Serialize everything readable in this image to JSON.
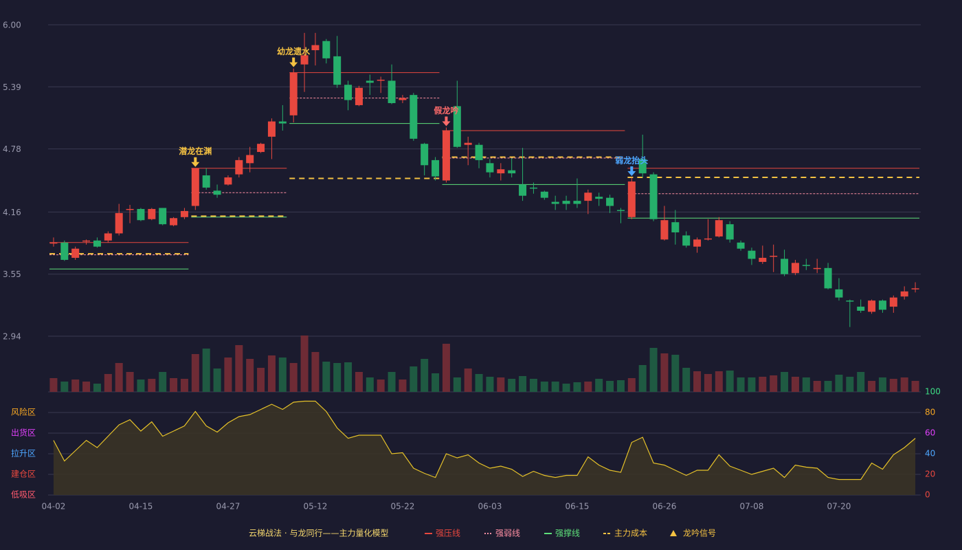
{
  "chart_data": [
    {
      "type": "candlestick",
      "categories": [
        "04-02",
        null,
        null,
        null,
        null,
        null,
        null,
        null,
        "04-15",
        null,
        null,
        null,
        null,
        null,
        null,
        null,
        "04-27",
        null,
        null,
        null,
        null,
        null,
        null,
        null,
        "05-12",
        null,
        null,
        null,
        null,
        null,
        null,
        null,
        "05-22",
        null,
        null,
        null,
        null,
        null,
        null,
        null,
        "06-03",
        null,
        null,
        null,
        null,
        null,
        null,
        null,
        "06-15",
        null,
        null,
        null,
        null,
        null,
        null,
        null,
        "06-26",
        null,
        null,
        null,
        null,
        null,
        null,
        null,
        "07-08",
        null,
        null,
        null,
        null,
        null,
        null,
        null,
        "07-20",
        null,
        null,
        null,
        null,
        null,
        null,
        null
      ],
      "open": [
        3.86,
        3.86,
        3.71,
        3.87,
        3.88,
        3.88,
        3.95,
        4.18,
        4.19,
        4.09,
        4.2,
        4.03,
        4.11,
        4.22,
        4.52,
        4.37,
        4.43,
        4.53,
        4.64,
        4.75,
        4.9,
        5.05,
        5.11,
        5.61,
        5.75,
        5.84,
        5.69,
        5.41,
        5.21,
        5.45,
        5.45,
        5.45,
        5.26,
        5.31,
        4.83,
        4.67,
        4.47,
        5.2,
        4.82,
        4.82,
        4.64,
        4.54,
        4.57,
        4.43,
        4.4,
        4.36,
        4.26,
        4.27,
        4.27,
        4.27,
        4.31,
        4.3,
        4.18,
        4.11,
        4.68,
        4.53,
        3.89,
        4.06,
        3.93,
        3.82,
        3.89,
        3.92,
        4.04,
        3.86,
        3.78,
        3.67,
        3.72,
        3.7,
        3.56,
        3.64,
        3.6,
        3.61,
        3.4,
        3.29,
        3.23,
        3.18,
        3.29,
        3.23,
        3.33,
        3.4
      ],
      "high": [
        3.91,
        3.88,
        3.82,
        3.89,
        3.91,
        3.97,
        4.24,
        4.23,
        4.2,
        4.2,
        4.2,
        4.11,
        4.2,
        4.59,
        4.59,
        4.43,
        4.52,
        4.7,
        4.8,
        4.84,
        5.08,
        5.21,
        5.57,
        5.92,
        5.92,
        5.86,
        5.89,
        5.45,
        5.4,
        5.51,
        5.49,
        5.61,
        5.31,
        5.33,
        4.84,
        4.7,
        4.99,
        5.45,
        4.9,
        4.84,
        4.68,
        4.64,
        4.69,
        4.79,
        4.45,
        4.37,
        4.32,
        4.32,
        4.49,
        4.38,
        4.35,
        4.33,
        4.2,
        4.5,
        4.92,
        4.55,
        4.22,
        4.18,
        3.97,
        3.91,
        4.09,
        4.11,
        4.07,
        3.88,
        3.81,
        3.83,
        3.84,
        3.79,
        3.69,
        3.7,
        3.7,
        3.66,
        3.51,
        3.3,
        3.3,
        3.3,
        3.3,
        3.34,
        3.43,
        3.47
      ],
      "low": [
        3.82,
        3.68,
        3.69,
        3.84,
        3.81,
        3.86,
        3.93,
        4.05,
        4.07,
        4.08,
        4.03,
        4.02,
        4.09,
        4.18,
        4.38,
        4.3,
        4.42,
        4.5,
        4.55,
        4.74,
        4.68,
        4.96,
        5.04,
        5.34,
        5.6,
        5.62,
        5.38,
        5.16,
        5.2,
        5.31,
        5.33,
        5.22,
        5.23,
        4.86,
        4.52,
        4.47,
        4.45,
        4.79,
        4.62,
        4.59,
        4.5,
        4.47,
        4.5,
        4.27,
        4.34,
        4.28,
        4.18,
        4.18,
        4.2,
        4.14,
        4.22,
        4.15,
        4.05,
        4.09,
        4.5,
        4.07,
        3.88,
        3.84,
        3.81,
        3.76,
        3.88,
        3.91,
        3.86,
        3.78,
        3.64,
        3.65,
        3.57,
        3.53,
        3.54,
        3.59,
        3.56,
        3.4,
        3.29,
        3.03,
        3.17,
        3.16,
        3.17,
        3.17,
        3.3,
        3.37
      ],
      "close": [
        3.86,
        3.69,
        3.8,
        3.88,
        3.82,
        3.95,
        4.15,
        4.19,
        4.08,
        4.19,
        4.04,
        4.1,
        4.17,
        4.59,
        4.4,
        4.33,
        4.5,
        4.67,
        4.72,
        4.83,
        5.05,
        5.03,
        5.53,
        5.7,
        5.8,
        5.67,
        5.41,
        5.26,
        5.38,
        5.43,
        5.46,
        5.23,
        5.28,
        4.88,
        4.62,
        4.51,
        4.96,
        4.8,
        4.84,
        4.67,
        4.55,
        4.58,
        4.54,
        4.32,
        4.39,
        4.3,
        4.24,
        4.24,
        4.24,
        4.35,
        4.29,
        4.22,
        4.17,
        4.46,
        4.54,
        4.09,
        4.08,
        3.96,
        3.83,
        3.89,
        3.9,
        4.08,
        3.89,
        3.8,
        3.7,
        3.71,
        3.73,
        3.55,
        3.66,
        3.63,
        3.61,
        3.41,
        3.32,
        3.28,
        3.19,
        3.29,
        3.2,
        3.32,
        3.38,
        3.41
      ],
      "up_color": "#e8483f",
      "down_color": "#26b06b",
      "ylim": [
        2.94,
        6.0
      ],
      "yticks": [
        2.94,
        3.55,
        4.16,
        4.78,
        5.39,
        {
          "value": 6.0,
          "label": "6.00"
        }
      ],
      "grid": true,
      "lines": [
        {
          "name": "强压线",
          "color": "#e8483f",
          "style": "solid",
          "segments": [
            {
              "from": 0,
              "to": 12,
              "value": 3.86
            },
            {
              "from": 13,
              "to": 21,
              "value": 4.59
            },
            {
              "from": 22,
              "to": 35,
              "value": 5.53
            },
            {
              "from": 36,
              "to": 52,
              "value": 4.96
            },
            {
              "from": 53,
              "to": 79,
              "value": 4.59
            }
          ]
        },
        {
          "name": "强弱线",
          "color": "#ff8fa3",
          "style": "dotted",
          "segments": [
            {
              "from": 0,
              "to": 12,
              "value": 3.74
            },
            {
              "from": 13,
              "to": 21,
              "value": 4.35
            },
            {
              "from": 22,
              "to": 35,
              "value": 5.28
            },
            {
              "from": 36,
              "to": 52,
              "value": 4.69
            },
            {
              "from": 53,
              "to": 79,
              "value": 4.34
            }
          ]
        },
        {
          "name": "强撑线",
          "color": "#5ee07a",
          "style": "solid",
          "segments": [
            {
              "from": 0,
              "to": 12,
              "value": 3.6
            },
            {
              "from": 13,
              "to": 21,
              "value": 4.11
            },
            {
              "from": 22,
              "to": 35,
              "value": 5.03
            },
            {
              "from": 36,
              "to": 52,
              "value": 4.43
            },
            {
              "from": 53,
              "to": 79,
              "value": 4.1
            }
          ]
        },
        {
          "name": "主力成本",
          "color": "#f5c242",
          "style": "dashed",
          "segments": [
            {
              "from": 0,
              "to": 12,
              "value": 3.75
            },
            {
              "from": 13,
              "to": 21,
              "value": 4.12
            },
            {
              "from": 22,
              "to": 35,
              "value": 4.49
            },
            {
              "from": 36,
              "to": 52,
              "value": 4.7
            },
            {
              "from": 53,
              "to": 79,
              "value": 4.5
            }
          ]
        }
      ],
      "signals": [
        {
          "index": 13,
          "label": "潜龙在渊",
          "color": "#f5c242"
        },
        {
          "index": 22,
          "label": "幼龙遗水",
          "color": "#f5c242"
        },
        {
          "index": 36,
          "label": "假龙吟",
          "color": "#ff6b6b"
        },
        {
          "index": 53,
          "label": "弱龙抬头",
          "color": "#4da6ff"
        }
      ],
      "signal_name": "龙吟信号",
      "signal_color": "#f5c242",
      "legend_title": "云梯战法 · 与龙同行——主力量化模型",
      "legend_title_color": "#f5d76e"
    },
    {
      "type": "bar",
      "values": [
        20,
        15,
        18,
        15,
        12,
        26,
        42,
        29,
        18,
        19,
        29,
        20,
        19,
        55,
        63,
        34,
        50,
        68,
        48,
        35,
        53,
        50,
        42,
        82,
        58,
        44,
        42,
        43,
        29,
        21,
        18,
        29,
        18,
        37,
        48,
        27,
        70,
        21,
        34,
        26,
        22,
        21,
        19,
        23,
        19,
        15,
        15,
        12,
        14,
        15,
        19,
        16,
        17,
        20,
        39,
        64,
        56,
        54,
        35,
        30,
        26,
        30,
        31,
        21,
        21,
        22,
        24,
        29,
        22,
        21,
        16,
        16,
        25,
        22,
        29,
        16,
        21,
        19,
        21,
        16
      ],
      "ylim": [
        0,
        82
      ],
      "up_color": "#6e2b35",
      "down_color": "#1f5a42"
    },
    {
      "type": "area",
      "values": [
        53,
        33,
        43,
        53,
        46,
        57,
        68,
        73,
        62,
        71,
        57,
        62,
        67,
        81,
        67,
        61,
        70,
        76,
        78,
        83,
        88,
        83,
        90,
        91,
        91,
        81,
        65,
        55,
        58,
        58,
        58,
        40,
        41,
        26,
        21,
        17,
        40,
        36,
        39,
        31,
        26,
        28,
        25,
        18,
        23,
        19,
        17,
        19,
        19,
        37,
        29,
        24,
        22,
        51,
        56,
        31,
        29,
        24,
        19,
        24,
        24,
        39,
        28,
        24,
        20,
        23,
        26,
        17,
        29,
        27,
        26,
        17,
        15,
        15,
        15,
        31,
        25,
        39,
        46,
        55
      ],
      "color": "#e6c229",
      "fill": "#3a3326",
      "ylim": [
        0,
        100
      ],
      "yticks": [
        0,
        20,
        40,
        60,
        80,
        100
      ],
      "ytick_colors": [
        "#e8483f",
        "#e8483f",
        "#4da6ff",
        "#e040fb",
        "#f5a623",
        "#3ddc84"
      ],
      "zones": [
        {
          "name": "低吸区",
          "value": 0,
          "color": "#ff5a6e"
        },
        {
          "name": "建仓区",
          "value": 20,
          "color": "#e8483f"
        },
        {
          "name": "拉升区",
          "value": 40,
          "color": "#4da6ff"
        },
        {
          "name": "出货区",
          "value": 60,
          "color": "#e040fb"
        },
        {
          "name": "风险区",
          "value": 80,
          "color": "#f5a623"
        }
      ]
    }
  ]
}
